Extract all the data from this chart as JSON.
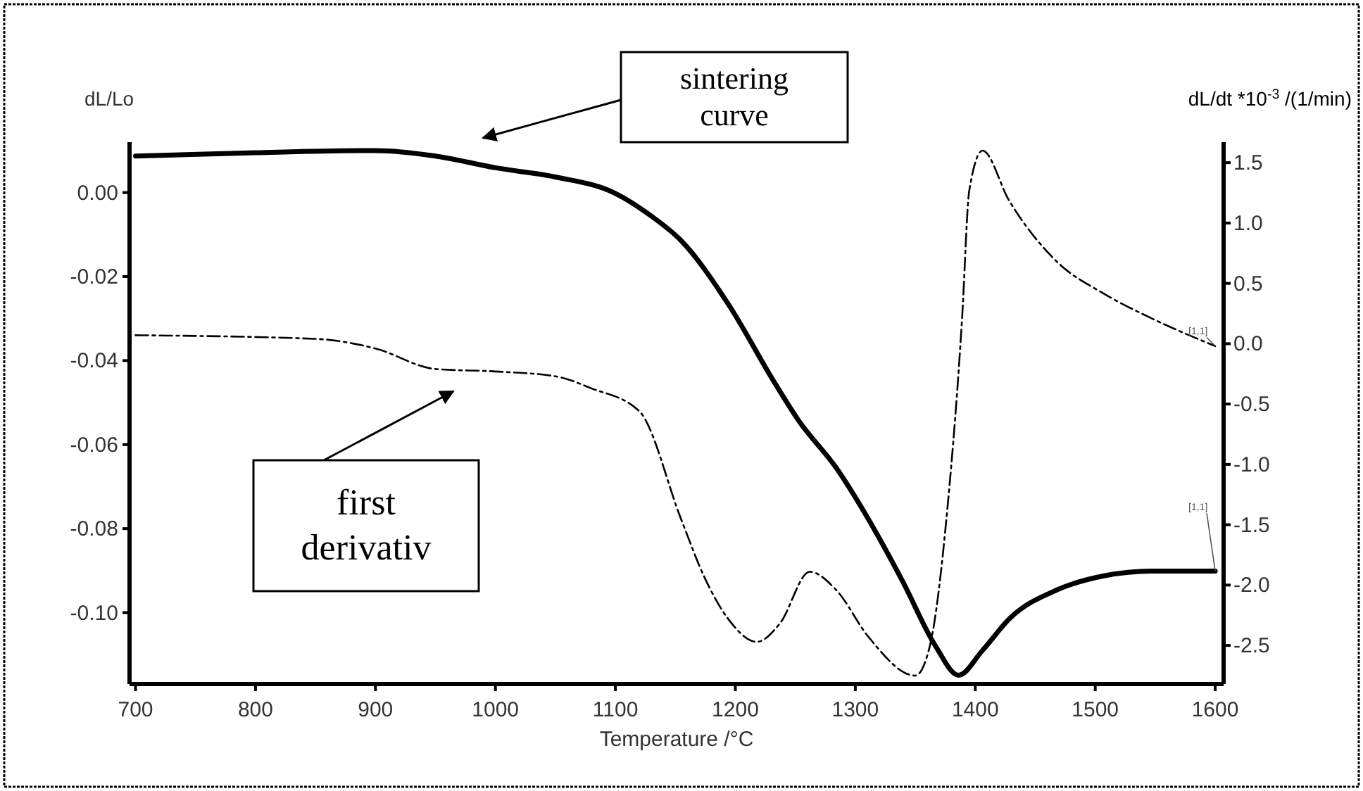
{
  "chart_data": {
    "type": "line",
    "xlabel": "Temperature /°C",
    "ylabel": "dL/Lo",
    "y2label": "dL/dt *10$^{-3}$ /(1/min)",
    "xlim": [
      695,
      1607
    ],
    "xticks": [
      700,
      800,
      900,
      1000,
      1100,
      1200,
      1300,
      1400,
      1500,
      1600
    ],
    "ylim": [
      -0.117,
      0.012
    ],
    "yticks": [
      {
        "value": -0.1,
        "label": "-0.10"
      },
      {
        "value": -0.08,
        "label": "-0.08"
      },
      {
        "value": -0.06,
        "label": "-0.06"
      },
      {
        "value": -0.04,
        "label": "-0.04"
      },
      {
        "value": -0.02,
        "label": "-0.02"
      },
      {
        "value": 0,
        "label": "0.00"
      }
    ],
    "y2lim": [
      -2.82,
      1.67
    ],
    "y2ticks": [
      -2.5,
      {
        "value": -2,
        "label": "-2.0"
      },
      {
        "value": -1.5,
        "label": "-1.5"
      },
      {
        "value": -1,
        "label": "-1.0"
      },
      -0.5,
      {
        "value": 0,
        "label": "0.0"
      },
      0.5,
      {
        "value": 1,
        "label": "1.0"
      },
      1.5
    ],
    "grid": false,
    "legend": false,
    "marker": "none",
    "series": [
      {
        "color": "#000000",
        "line_style": "solid",
        "x": [
          700,
          800,
          900,
          950,
          1000,
          1050,
          1100,
          1128,
          1155,
          1194,
          1233,
          1253,
          1284,
          1311,
          1339,
          1367,
          1386,
          1406,
          1429,
          1468,
          1508,
          1547,
          1600
        ],
        "values": [
          0.0087,
          0.0095,
          0.01,
          0.0087,
          0.0059,
          0.0037,
          -0.0002,
          -0.0052,
          -0.0115,
          -0.0265,
          -0.0454,
          -0.0544,
          -0.0655,
          -0.0778,
          -0.0923,
          -0.108,
          -0.1149,
          -0.109,
          -0.1013,
          -0.0946,
          -0.0912,
          -0.0901,
          -0.0901
        ]
      },
      {
        "color": "#000000",
        "line_style": "dashed",
        "axis": "y2",
        "x": [
          700,
          850,
          900,
          950,
          1000,
          1050,
          1080,
          1120,
          1155,
          1174,
          1194,
          1218,
          1237,
          1262,
          1284,
          1311,
          1350,
          1362,
          1377,
          1389,
          1395,
          1406,
          1428,
          1468,
          1508,
          1547,
          1600
        ],
        "values": [
          0.07,
          0.04,
          -0.04,
          -0.21,
          -0.23,
          -0.27,
          -0.37,
          -0.56,
          -1.46,
          -1.93,
          -2.28,
          -2.47,
          -2.32,
          -1.89,
          -2.04,
          -2.43,
          -2.75,
          -2.51,
          -1.34,
          0.21,
          1.27,
          1.6,
          1.19,
          0.68,
          0.41,
          0.21,
          -0.02
        ]
      }
    ],
    "annotations": [
      "sintering curve",
      "first derivativ",
      {
        "text": "[1,1]",
        "x": 1600,
        "y": -0.0365
      },
      {
        "text": "[1,1]",
        "x": 1600,
        "y": -0.0901
      }
    ]
  }
}
